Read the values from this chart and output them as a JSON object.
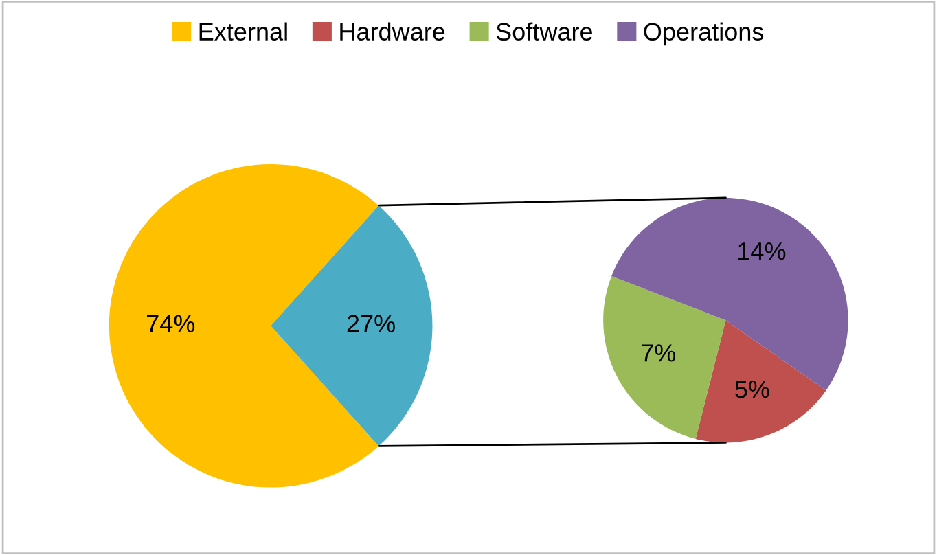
{
  "chart_data": [
    {
      "type": "pie",
      "categories": [
        "External",
        null
      ],
      "values": [
        74,
        27
      ],
      "colors": [
        "#ffc000",
        "#4bacc6"
      ],
      "value_labels": [
        "74%",
        "27%"
      ],
      "legend": "top"
    },
    {
      "type": "pie",
      "categories": [
        "Hardware",
        "Software",
        "Operations"
      ],
      "values": [
        5,
        7,
        14
      ],
      "colors": [
        "#c0504d",
        "#9bbb59",
        "#8064a2"
      ],
      "value_labels": [
        "5%",
        "7%",
        "14%"
      ],
      "legend": "top"
    }
  ]
}
